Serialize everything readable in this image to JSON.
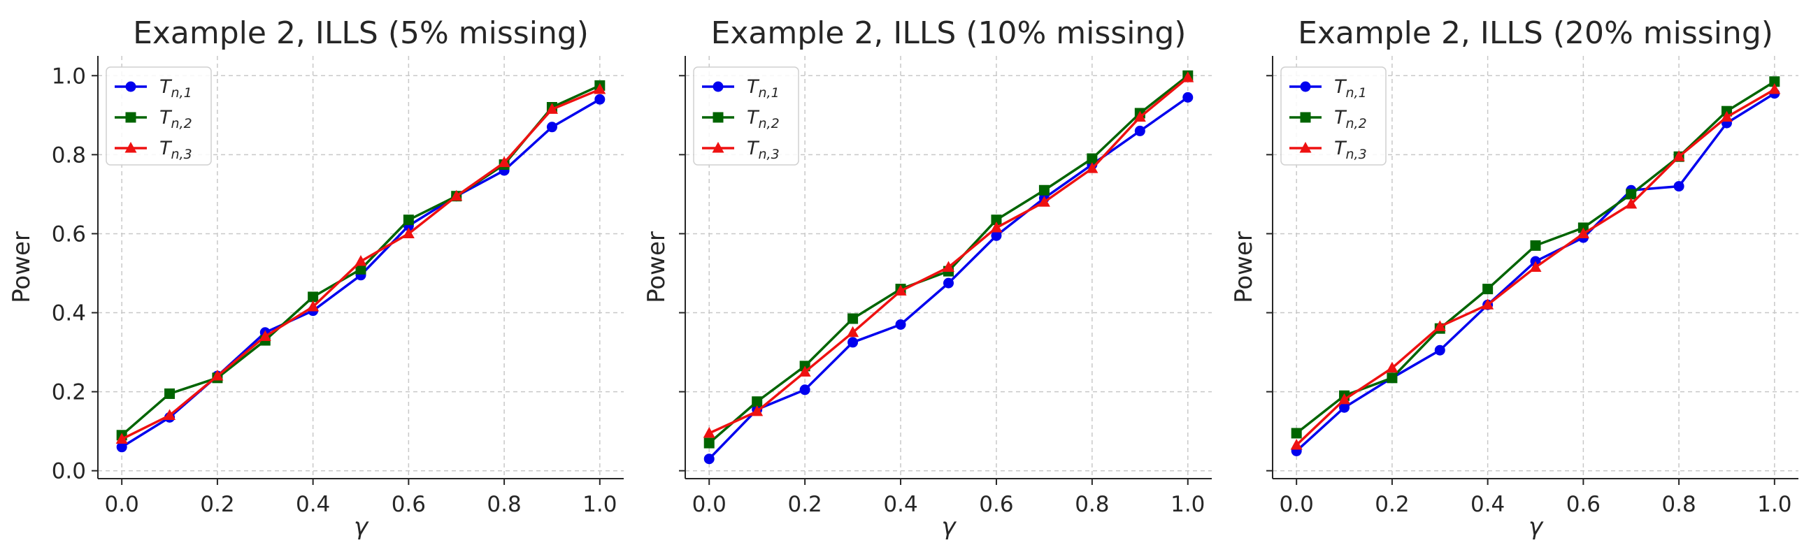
{
  "chart_data": [
    {
      "type": "line",
      "title": "Example 2, ILLS (5% missing)",
      "xlabel": "γ",
      "ylabel": "Power",
      "xlim": [
        -0.05,
        1.05
      ],
      "ylim": [
        -0.02,
        1.05
      ],
      "xticks": [
        "0.0",
        "0.2",
        "0.4",
        "0.6",
        "0.8",
        "1.0"
      ],
      "yticks": [
        "0.0",
        "0.2",
        "0.4",
        "0.6",
        "0.8",
        "1.0"
      ],
      "grid": true,
      "legend": "upper-left",
      "x": [
        0.0,
        0.1,
        0.2,
        0.3,
        0.4,
        0.5,
        0.6,
        0.7,
        0.8,
        0.9,
        1.0
      ],
      "series": [
        {
          "name": "T",
          "sub": "n,1",
          "marker": "circle",
          "color": "#0000ee",
          "values": [
            0.06,
            0.135,
            0.24,
            0.35,
            0.405,
            0.495,
            0.62,
            0.695,
            0.76,
            0.87,
            0.94
          ]
        },
        {
          "name": "T",
          "sub": "n,2",
          "marker": "square",
          "color": "#006400",
          "values": [
            0.09,
            0.195,
            0.235,
            0.33,
            0.44,
            0.51,
            0.635,
            0.695,
            0.775,
            0.92,
            0.975
          ]
        },
        {
          "name": "T",
          "sub": "n,3",
          "marker": "triangle",
          "color": "#ee1111",
          "values": [
            0.08,
            0.14,
            0.24,
            0.34,
            0.415,
            0.53,
            0.6,
            0.695,
            0.78,
            0.915,
            0.965
          ]
        }
      ]
    },
    {
      "type": "line",
      "title": "Example 2, ILLS (10% missing)",
      "xlabel": "γ",
      "ylabel": "Power",
      "xlim": [
        -0.05,
        1.05
      ],
      "ylim": [
        -0.02,
        1.05
      ],
      "xticks": [
        "0.0",
        "0.2",
        "0.4",
        "0.6",
        "0.8",
        "1.0"
      ],
      "yticks": [],
      "grid": true,
      "legend": "upper-left",
      "x": [
        0.0,
        0.1,
        0.2,
        0.3,
        0.4,
        0.5,
        0.6,
        0.7,
        0.8,
        0.9,
        1.0
      ],
      "series": [
        {
          "name": "T",
          "sub": "n,1",
          "marker": "circle",
          "color": "#0000ee",
          "values": [
            0.03,
            0.155,
            0.205,
            0.325,
            0.37,
            0.475,
            0.595,
            0.69,
            0.775,
            0.86,
            0.945
          ]
        },
        {
          "name": "T",
          "sub": "n,2",
          "marker": "square",
          "color": "#006400",
          "values": [
            0.07,
            0.175,
            0.265,
            0.385,
            0.46,
            0.505,
            0.635,
            0.71,
            0.79,
            0.905,
            1.0
          ]
        },
        {
          "name": "T",
          "sub": "n,3",
          "marker": "triangle",
          "color": "#ee1111",
          "values": [
            0.095,
            0.15,
            0.25,
            0.35,
            0.455,
            0.515,
            0.615,
            0.68,
            0.765,
            0.895,
            0.995
          ]
        }
      ]
    },
    {
      "type": "line",
      "title": "Example 2, ILLS (20% missing)",
      "xlabel": "γ",
      "ylabel": "Power",
      "xlim": [
        -0.05,
        1.05
      ],
      "ylim": [
        -0.02,
        1.05
      ],
      "xticks": [
        "0.0",
        "0.2",
        "0.4",
        "0.6",
        "0.8",
        "1.0"
      ],
      "yticks": [],
      "grid": true,
      "legend": "upper-left",
      "x": [
        0.0,
        0.1,
        0.2,
        0.3,
        0.4,
        0.5,
        0.6,
        0.7,
        0.8,
        0.9,
        1.0
      ],
      "series": [
        {
          "name": "T",
          "sub": "n,1",
          "marker": "circle",
          "color": "#0000ee",
          "values": [
            0.05,
            0.16,
            0.235,
            0.305,
            0.42,
            0.53,
            0.59,
            0.71,
            0.72,
            0.88,
            0.955
          ]
        },
        {
          "name": "T",
          "sub": "n,2",
          "marker": "square",
          "color": "#006400",
          "values": [
            0.095,
            0.19,
            0.235,
            0.36,
            0.46,
            0.57,
            0.615,
            0.7,
            0.795,
            0.91,
            0.985
          ]
        },
        {
          "name": "T",
          "sub": "n,3",
          "marker": "triangle",
          "color": "#ee1111",
          "values": [
            0.065,
            0.18,
            0.26,
            0.365,
            0.42,
            0.515,
            0.6,
            0.675,
            0.795,
            0.895,
            0.965
          ]
        }
      ]
    }
  ]
}
